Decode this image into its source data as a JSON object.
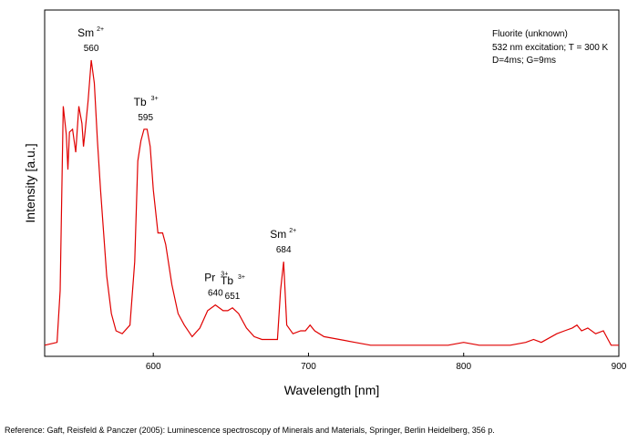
{
  "chart_data": {
    "type": "line",
    "title": "",
    "xlabel": "Wavelength [nm]",
    "ylabel": "Intensity [a.u.]",
    "xlim": [
      530,
      900
    ],
    "ylim": [
      0,
      100
    ],
    "x_ticks": [
      600,
      700,
      800,
      900
    ],
    "x_tick_labels": [
      "600",
      "700",
      "800",
      "900"
    ],
    "y_tick_labels_shown": false,
    "grid": false,
    "legend": "none",
    "series_color": "#e00000",
    "series": [
      {
        "points": [
          [
            530,
            1
          ],
          [
            538,
            2
          ],
          [
            540,
            20
          ],
          [
            542,
            84
          ],
          [
            544,
            74
          ],
          [
            545,
            62
          ],
          [
            546,
            75
          ],
          [
            548,
            76
          ],
          [
            550,
            68
          ],
          [
            552,
            84
          ],
          [
            554,
            78
          ],
          [
            555,
            70
          ],
          [
            556,
            75
          ],
          [
            558,
            86
          ],
          [
            560,
            100
          ],
          [
            562,
            92
          ],
          [
            564,
            72
          ],
          [
            566,
            55
          ],
          [
            568,
            40
          ],
          [
            570,
            25
          ],
          [
            573,
            12
          ],
          [
            576,
            6
          ],
          [
            580,
            5
          ],
          [
            585,
            8
          ],
          [
            588,
            30
          ],
          [
            590,
            65
          ],
          [
            592,
            72
          ],
          [
            594,
            76
          ],
          [
            596,
            76
          ],
          [
            598,
            70
          ],
          [
            600,
            55
          ],
          [
            603,
            40
          ],
          [
            606,
            40
          ],
          [
            608,
            36
          ],
          [
            612,
            22
          ],
          [
            616,
            12
          ],
          [
            620,
            8
          ],
          [
            625,
            4
          ],
          [
            630,
            7
          ],
          [
            635,
            13
          ],
          [
            640,
            15
          ],
          [
            645,
            13
          ],
          [
            648,
            13
          ],
          [
            651,
            14
          ],
          [
            655,
            12
          ],
          [
            660,
            7
          ],
          [
            665,
            4
          ],
          [
            670,
            3
          ],
          [
            675,
            3
          ],
          [
            680,
            3
          ],
          [
            682,
            20
          ],
          [
            684,
            30
          ],
          [
            686,
            8
          ],
          [
            690,
            5
          ],
          [
            695,
            6
          ],
          [
            698,
            6
          ],
          [
            701,
            8
          ],
          [
            704,
            6
          ],
          [
            710,
            4
          ],
          [
            720,
            3
          ],
          [
            730,
            2
          ],
          [
            740,
            1
          ],
          [
            750,
            1
          ],
          [
            760,
            1
          ],
          [
            770,
            1
          ],
          [
            780,
            1
          ],
          [
            790,
            1
          ],
          [
            800,
            2
          ],
          [
            810,
            1
          ],
          [
            820,
            1
          ],
          [
            830,
            1
          ],
          [
            840,
            2
          ],
          [
            845,
            3
          ],
          [
            850,
            2
          ],
          [
            860,
            5
          ],
          [
            865,
            6
          ],
          [
            870,
            7
          ],
          [
            873,
            8
          ],
          [
            876,
            6
          ],
          [
            880,
            7
          ],
          [
            885,
            5
          ],
          [
            890,
            6
          ],
          [
            893,
            3
          ],
          [
            895,
            1
          ],
          [
            900,
            1
          ]
        ]
      }
    ],
    "annotations": [
      {
        "label": "Sm",
        "sup": "2+",
        "value": "560",
        "x": 560,
        "y": 100
      },
      {
        "label": "Tb",
        "sup": "3+",
        "value": "595",
        "x": 595,
        "y": 76
      },
      {
        "label": "Pr",
        "sup": "3+",
        "value": "640",
        "x": 640,
        "y": 15
      },
      {
        "label": "Tb",
        "sup": "3+",
        "value": "651",
        "x": 651,
        "y": 14
      },
      {
        "label": "Sm",
        "sup": "2+",
        "value": "684",
        "x": 684,
        "y": 30
      }
    ],
    "info_box": [
      "Fluorite (unknown)",
      "532 nm excitation; T = 300 K",
      "D=4ms; G=9ms"
    ]
  },
  "reference": "Reference: Gaft, Reisfeld & Panczer (2005): Luminescence spectroscopy of Minerals and Materials, Springer, Berlin Heidelberg, 356 p."
}
